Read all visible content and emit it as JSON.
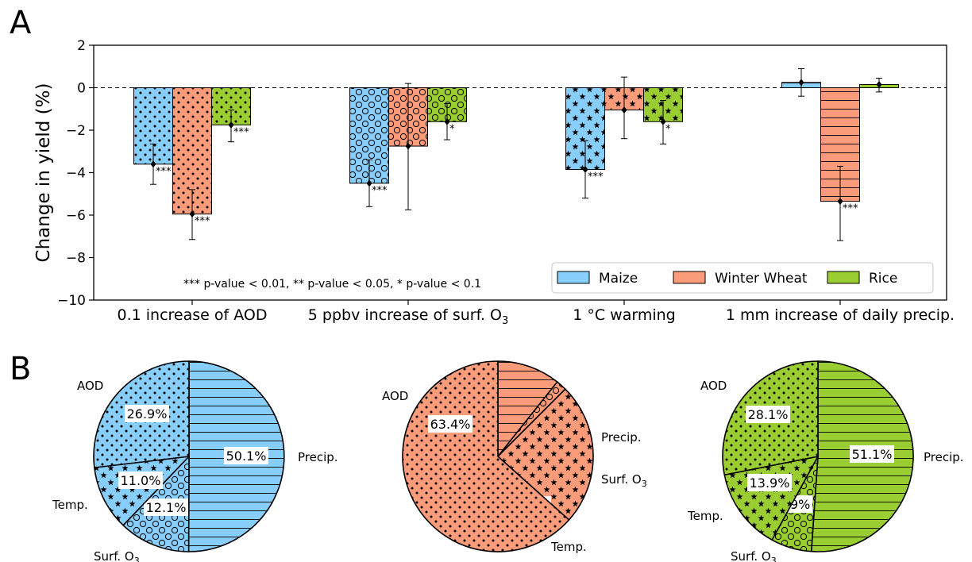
{
  "panel_labels": {
    "a": "A",
    "b": "B"
  },
  "colors": {
    "maize": "#87CEFA",
    "wheat": "#FA9B7A",
    "rice": "#9ACD32"
  },
  "chart_data": [
    {
      "type": "bar",
      "ylabel": "Change in yield (%)",
      "ylim": [
        -10,
        2
      ],
      "yticks": [
        "−10",
        "−8",
        "−6",
        "−4",
        "−2",
        "0",
        "2"
      ],
      "categories": [
        "0.1 increase of AOD",
        "5 ppbv increase of surf. O",
        "1 °C warming",
        "1 mm increase of daily precip."
      ],
      "category_subscripts": [
        "",
        "3",
        "",
        ""
      ],
      "hatches": [
        "dots",
        "circles",
        "stars",
        "hlines"
      ],
      "series": [
        {
          "name": "Maize",
          "color": "#87CEFA",
          "values": [
            -3.6,
            -4.5,
            -3.85,
            0.25
          ],
          "err_low": [
            -4.55,
            -5.6,
            -5.2,
            -0.4
          ],
          "err_high": [
            -2.65,
            -3.4,
            -2.5,
            0.9
          ],
          "sig": [
            "***",
            "***",
            "***",
            ""
          ]
        },
        {
          "name": "Winter Wheat",
          "color": "#FA9B7A",
          "values": [
            -5.95,
            -2.75,
            -1.05,
            -5.35
          ],
          "err_low": [
            -7.15,
            -5.75,
            -2.4,
            -7.2
          ],
          "err_high": [
            -4.8,
            0.2,
            0.5,
            -3.7
          ],
          "sig": [
            "***",
            "",
            "",
            "***"
          ]
        },
        {
          "name": "Rice",
          "color": "#9ACD32",
          "values": [
            -1.75,
            -1.6,
            -1.6,
            0.15
          ],
          "err_low": [
            -2.55,
            -2.45,
            -2.65,
            -0.2
          ],
          "err_high": [
            -1.05,
            -0.75,
            -0.6,
            0.45
          ],
          "sig": [
            "***",
            "*",
            "*",
            ""
          ]
        }
      ],
      "legend_placement": "lower-right",
      "annotation": "*** p-value < 0.01, ** p-value < 0.05, * p-value < 0.1",
      "reference_line": 0
    },
    {
      "type": "pie",
      "crop": "Maize",
      "color": "#87CEFA",
      "slices": [
        {
          "label": "Precip.",
          "value": 50.1,
          "pct": "50.1%",
          "hatch": "hlines",
          "sub": ""
        },
        {
          "label": "Surf. O",
          "value": 12.1,
          "pct": "12.1%",
          "hatch": "circles",
          "sub": "3"
        },
        {
          "label": "Temp.",
          "value": 11.0,
          "pct": "11.0%",
          "hatch": "stars",
          "sub": ""
        },
        {
          "label": "AOD",
          "value": 26.9,
          "pct": "26.9%",
          "hatch": "dots",
          "sub": ""
        }
      ]
    },
    {
      "type": "pie",
      "crop": "Winter Wheat",
      "color": "#FA9B7A",
      "slices": [
        {
          "label": "Precip.",
          "value": 10.7,
          "pct": "10.7%",
          "hatch": "hlines",
          "sub": ""
        },
        {
          "label": "Surf. O",
          "value": 1.8,
          "pct": "1.8%",
          "hatch": "circles",
          "sub": "3"
        },
        {
          "label": "Temp.",
          "value": 24.1,
          "pct": "24.1%",
          "hatch": "stars",
          "sub": ""
        },
        {
          "label": "AOD",
          "value": 63.4,
          "pct": "63.4%",
          "hatch": "dots",
          "sub": ""
        }
      ]
    },
    {
      "type": "pie",
      "crop": "Rice",
      "color": "#9ACD32",
      "slices": [
        {
          "label": "Precip.",
          "value": 51.1,
          "pct": "51.1%",
          "hatch": "hlines",
          "sub": ""
        },
        {
          "label": "Surf. O",
          "value": 6.9,
          "pct": "6.9%",
          "hatch": "circles",
          "sub": "3"
        },
        {
          "label": "Temp.",
          "value": 13.9,
          "pct": "13.9%",
          "hatch": "stars",
          "sub": ""
        },
        {
          "label": "AOD",
          "value": 28.1,
          "pct": "28.1%",
          "hatch": "dots",
          "sub": ""
        }
      ]
    }
  ]
}
